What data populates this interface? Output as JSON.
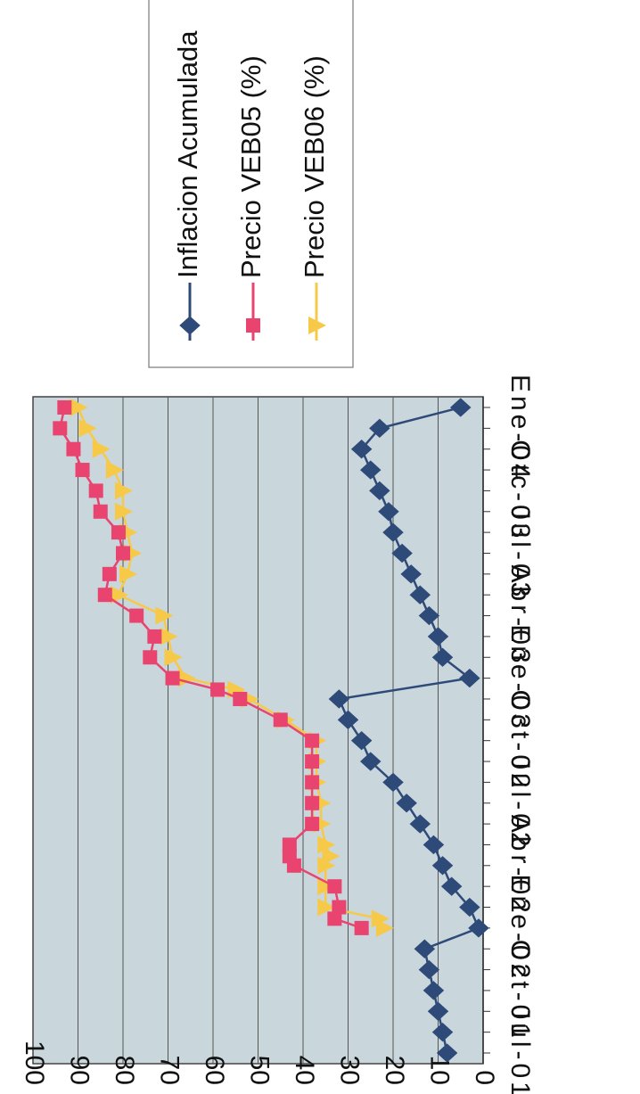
{
  "chart_data": {
    "type": "line",
    "orientation": "rotated-180-degrees",
    "ylim": [
      0,
      100
    ],
    "y_ticks": [
      "0",
      "10",
      "20",
      "30",
      "40",
      "50",
      "60",
      "70",
      "80",
      "90",
      "100"
    ],
    "x_tick_labels": [
      "Jul-01",
      "Oct-01",
      "Ene-02",
      "Abr-02",
      "Jul-02",
      "Oct-02",
      "Ene-03",
      "Abr-03",
      "Jul-03",
      "Otc-03",
      "Ene-04"
    ],
    "grid": true,
    "legend_position": "top",
    "colors": {
      "plot_bg": "#c9d6dc",
      "inflacion": "#2e4a78",
      "veb05": "#e8446f",
      "veb06": "#f7c948",
      "gridline": "#555555"
    },
    "series": [
      {
        "name": "Inflacion Acumulada",
        "marker": "diamond",
        "points": [
          {
            "x": "Jul-01",
            "y": 8
          },
          {
            "x": "Ago-01",
            "y": 9
          },
          {
            "x": "Sep-01",
            "y": 10
          },
          {
            "x": "Oct-01",
            "y": 11
          },
          {
            "x": "Nov-01",
            "y": 12
          },
          {
            "x": "Dic-01",
            "y": 13
          },
          {
            "x": "Ene-02",
            "y": 1
          },
          {
            "x": "Feb-02",
            "y": 3
          },
          {
            "x": "Mar-02",
            "y": 7
          },
          {
            "x": "Abr-02",
            "y": 9
          },
          {
            "x": "May-02",
            "y": 11
          },
          {
            "x": "Jun-02",
            "y": 14
          },
          {
            "x": "Jul-02",
            "y": 17
          },
          {
            "x": "Ago-02",
            "y": 20
          },
          {
            "x": "Sep-02",
            "y": 25
          },
          {
            "x": "Oct-02",
            "y": 27
          },
          {
            "x": "Nov-02",
            "y": 30
          },
          {
            "x": "Dic-02",
            "y": 32
          },
          {
            "x": "Ene-03",
            "y": 3
          },
          {
            "x": "Feb-03",
            "y": 9
          },
          {
            "x": "Mar-03",
            "y": 10
          },
          {
            "x": "Abr-03",
            "y": 12
          },
          {
            "x": "May-03",
            "y": 14
          },
          {
            "x": "Jun-03",
            "y": 16
          },
          {
            "x": "Jul-03",
            "y": 18
          },
          {
            "x": "Ago-03",
            "y": 20
          },
          {
            "x": "Sep-03",
            "y": 21
          },
          {
            "x": "Oct-03",
            "y": 23
          },
          {
            "x": "Nov-03",
            "y": 25
          },
          {
            "x": "Dic-03",
            "y": 27
          },
          {
            "x": "Ene-04",
            "y": 23
          },
          {
            "x": "Feb-04",
            "y": 5
          }
        ]
      },
      {
        "name": "Precio VEB05 (%)",
        "marker": "square",
        "points": [
          {
            "x": "Ene-02",
            "y": 27
          },
          {
            "x": "Ene-02b",
            "y": 33
          },
          {
            "x": "Feb-02",
            "y": 32
          },
          {
            "x": "Mar-02",
            "y": 33
          },
          {
            "x": "Abr-02",
            "y": 42
          },
          {
            "x": "Abr-02b",
            "y": 43
          },
          {
            "x": "May-02",
            "y": 43
          },
          {
            "x": "Jun-02",
            "y": 38
          },
          {
            "x": "Jul-02",
            "y": 38
          },
          {
            "x": "Ago-02",
            "y": 38
          },
          {
            "x": "Sep-02",
            "y": 38
          },
          {
            "x": "Oct-02",
            "y": 38
          },
          {
            "x": "Nov-02",
            "y": 45
          },
          {
            "x": "Dic-02",
            "y": 54
          },
          {
            "x": "Dic-02b",
            "y": 59
          },
          {
            "x": "Ene-03",
            "y": 69
          },
          {
            "x": "Feb-03",
            "y": 74
          },
          {
            "x": "Mar-03",
            "y": 73
          },
          {
            "x": "Abr-03",
            "y": 77
          },
          {
            "x": "May-03",
            "y": 84
          },
          {
            "x": "Jun-03",
            "y": 83
          },
          {
            "x": "Jul-03",
            "y": 80
          },
          {
            "x": "Ago-03",
            "y": 81
          },
          {
            "x": "Sep-03",
            "y": 85
          },
          {
            "x": "Oct-03",
            "y": 86
          },
          {
            "x": "Nov-03",
            "y": 89
          },
          {
            "x": "Dic-03",
            "y": 91
          },
          {
            "x": "Ene-04",
            "y": 94
          },
          {
            "x": "Feb-04",
            "y": 93
          }
        ]
      },
      {
        "name": "Precio VEB06 (%)",
        "marker": "triangle",
        "points": [
          {
            "x": "Ene-02",
            "y": 22
          },
          {
            "x": "Ene-02b",
            "y": 23
          },
          {
            "x": "Feb-02",
            "y": 35
          },
          {
            "x": "Mar-02",
            "y": 35
          },
          {
            "x": "Abr-02",
            "y": 35
          },
          {
            "x": "Abr-02b",
            "y": 34
          },
          {
            "x": "May-02",
            "y": 35
          },
          {
            "x": "Jun-02",
            "y": 36
          },
          {
            "x": "Jul-02",
            "y": 36
          },
          {
            "x": "Ago-02",
            "y": 37
          },
          {
            "x": "Sep-02",
            "y": 37
          },
          {
            "x": "Oct-02",
            "y": 37
          },
          {
            "x": "Nov-02",
            "y": 44
          },
          {
            "x": "Dic-02",
            "y": 52
          },
          {
            "x": "Dic-02b",
            "y": 55
          },
          {
            "x": "Ene-03",
            "y": 66
          },
          {
            "x": "Feb-03",
            "y": 69
          },
          {
            "x": "Mar-03",
            "y": 70
          },
          {
            "x": "Abr-03",
            "y": 71
          },
          {
            "x": "May-03",
            "y": 81
          },
          {
            "x": "Jun-03",
            "y": 79
          },
          {
            "x": "Jul-03",
            "y": 78
          },
          {
            "x": "Ago-03",
            "y": 79
          },
          {
            "x": "Sep-03",
            "y": 80
          },
          {
            "x": "Oct-03",
            "y": 80
          },
          {
            "x": "Nov-03",
            "y": 82
          },
          {
            "x": "Dic-03",
            "y": 85
          },
          {
            "x": "Ene-04",
            "y": 88
          },
          {
            "x": "Feb-04",
            "y": 90
          }
        ]
      }
    ]
  }
}
